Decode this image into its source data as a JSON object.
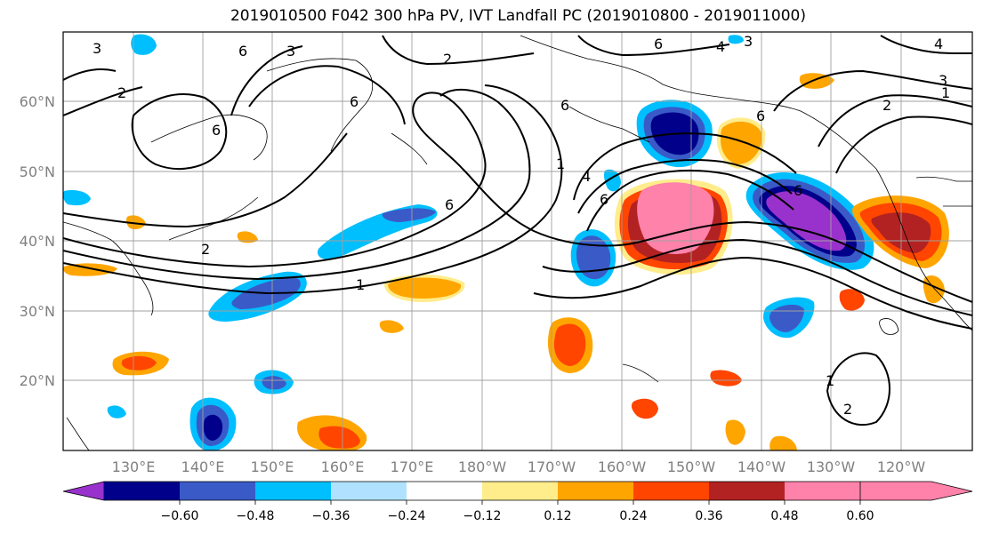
{
  "title": "2019010500 F042 300 hPa PV, IVT Landfall PC (2019010800 - 2019011000)",
  "lat_labels": [
    "60°N",
    "50°N",
    "40°N",
    "30°N",
    "20°N"
  ],
  "lon_labels": [
    "130°E",
    "140°E",
    "150°E",
    "160°E",
    "170°E",
    "180°W",
    "170°W",
    "160°W",
    "150°W",
    "140°W",
    "130°W",
    "120°W"
  ],
  "colorbar": {
    "ticks": [
      "−0.60",
      "−0.48",
      "−0.36",
      "−0.24",
      "−0.12",
      "0.12",
      "0.24",
      "0.36",
      "0.48",
      "0.60"
    ],
    "colors": [
      "#9932CC",
      "#00008B",
      "#3A5BC7",
      "#00BFFF",
      "#B0E2FF",
      "#FFFFFF",
      "#FFEC8B",
      "#FFA500",
      "#FF4500",
      "#B22222",
      "#FF82AB"
    ]
  },
  "contour_labels": [
    "3",
    "6",
    "2",
    "6",
    "3",
    "6",
    "4",
    "3",
    "4",
    "2",
    "3",
    "2",
    "6",
    "2",
    "6",
    "1",
    "6",
    "4",
    "6",
    "6",
    "1",
    "6",
    "1",
    "1",
    "2"
  ]
}
